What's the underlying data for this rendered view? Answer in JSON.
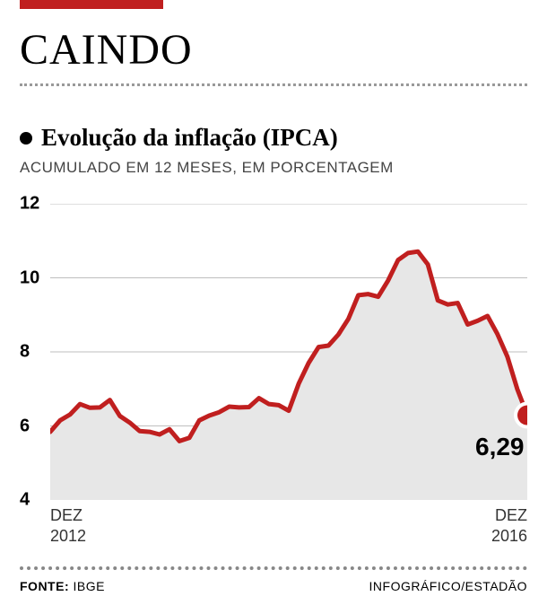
{
  "header": {
    "bar_color": "#c01f1f",
    "headline": "CAINDO",
    "dotted_color": "#999999"
  },
  "subtitle": {
    "bullet_color": "#000000",
    "text": "Evolução da inflação (IPCA)"
  },
  "description": "ACUMULADO EM 12 MESES, EM PORCENTAGEM",
  "chart": {
    "type": "area-line",
    "ylim": [
      4,
      12
    ],
    "yticks": [
      4,
      6,
      8,
      10,
      12
    ],
    "ytick_step": 2,
    "x_start": {
      "month": "DEZ",
      "year": "2012"
    },
    "x_end": {
      "month": "DEZ",
      "year": "2016"
    },
    "values": [
      5.84,
      6.15,
      6.31,
      6.59,
      6.49,
      6.5,
      6.7,
      6.27,
      6.09,
      5.86,
      5.84,
      5.77,
      5.91,
      5.59,
      5.68,
      6.15,
      6.28,
      6.37,
      6.52,
      6.5,
      6.51,
      6.75,
      6.59,
      6.56,
      6.41,
      7.14,
      7.7,
      8.13,
      8.17,
      8.47,
      8.89,
      9.53,
      9.56,
      9.49,
      9.93,
      10.48,
      10.67,
      10.71,
      10.36,
      9.39,
      9.28,
      9.32,
      8.74,
      8.84,
      8.97,
      8.48,
      7.87,
      6.99,
      6.29
    ],
    "line_color": "#c01f1f",
    "line_width": 5,
    "area_color": "#e7e7e7",
    "grid_color": "#bfbfbf",
    "background_color": "#ffffff",
    "end_marker": {
      "value_label": "6,29",
      "fill": "#c01f1f",
      "stroke": "#ffffff",
      "radius": 11
    }
  },
  "footer": {
    "source_label": "FONTE:",
    "source_value": "IBGE",
    "credit": "INFOGRÁFICO/ESTADÃO",
    "rule_color": "#888888"
  }
}
